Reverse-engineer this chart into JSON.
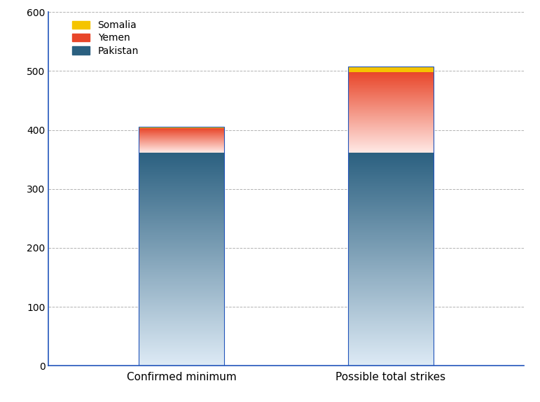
{
  "categories": [
    "Confirmed minimum",
    "Possible total strikes"
  ],
  "pakistan": [
    362,
    362
  ],
  "yemen": [
    41,
    136
  ],
  "somalia": [
    3,
    10
  ],
  "pak_color_bottom": "#ddeaf5",
  "pak_color_top": "#2b6080",
  "yem_color_bottom": "#ffe8e4",
  "yem_color_top": "#e8462a",
  "somalia_color": "#f5c400",
  "bar_border_color": "#2255bb",
  "ylim": [
    0,
    600
  ],
  "yticks": [
    0,
    100,
    200,
    300,
    400,
    500,
    600
  ],
  "background_color": "#ffffff",
  "grid_color": "#aaaaaa",
  "axis_color": "#2255bb",
  "bar_width": 0.18,
  "x_positions": [
    0.28,
    0.72
  ],
  "xlim": [
    0.0,
    1.0
  ],
  "legend_labels": [
    "Somalia",
    "Yemen",
    "Pakistan"
  ],
  "legend_colors": [
    "#f5c400",
    "#e8462a",
    "#2b6080"
  ],
  "tick_fontsize": 10,
  "xlabel_fontsize": 11
}
